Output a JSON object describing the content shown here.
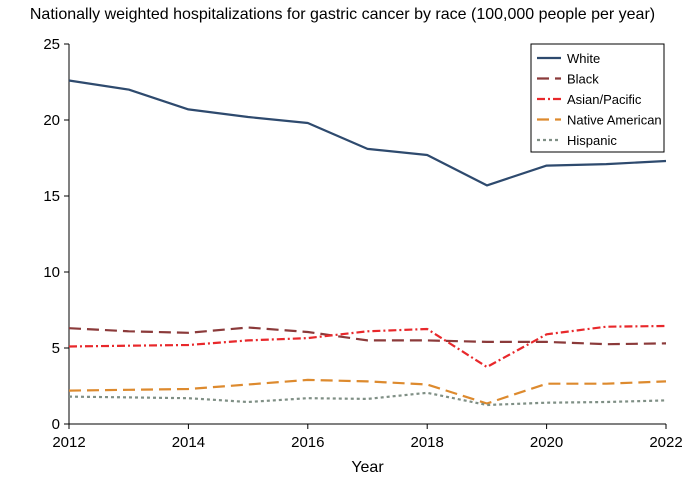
{
  "chart_data": {
    "type": "line",
    "title": "Nationally weighted hospitalizations for gastric cancer by race (100,000 people per year)",
    "xlabel": "Year",
    "ylabel": "",
    "xlim": [
      2012,
      2022
    ],
    "ylim": [
      0,
      25
    ],
    "x_ticks": [
      2012,
      2014,
      2016,
      2018,
      2020,
      2022
    ],
    "y_ticks": [
      0,
      5,
      10,
      15,
      20,
      25
    ],
    "grid": false,
    "legend_position": "top-right",
    "x": [
      2012,
      2013,
      2014,
      2015,
      2016,
      2017,
      2018,
      2019,
      2020,
      2021,
      2022
    ],
    "series": [
      {
        "name": "White",
        "color": "#2e4a6e",
        "dash": "solid",
        "values": [
          22.6,
          22.0,
          20.7,
          20.2,
          19.8,
          18.1,
          17.7,
          15.7,
          17.0,
          17.1,
          17.3
        ]
      },
      {
        "name": "Black",
        "color": "#8b3a3a",
        "dash": "longdash",
        "values": [
          6.3,
          6.1,
          6.0,
          6.35,
          6.05,
          5.5,
          5.5,
          5.4,
          5.4,
          5.25,
          5.3
        ]
      },
      {
        "name": "Asian/Pacific",
        "color": "#e8282b",
        "dash": "dashdot",
        "values": [
          5.1,
          5.15,
          5.2,
          5.5,
          5.65,
          6.1,
          6.25,
          3.75,
          5.9,
          6.4,
          6.45
        ]
      },
      {
        "name": "Native American",
        "color": "#dd8a2e",
        "dash": "longdash",
        "values": [
          2.2,
          2.25,
          2.3,
          2.6,
          2.9,
          2.8,
          2.6,
          1.35,
          2.65,
          2.65,
          2.8
        ]
      },
      {
        "name": "Hispanic",
        "color": "#7f8f85",
        "dash": "dotted",
        "values": [
          1.8,
          1.75,
          1.7,
          1.45,
          1.7,
          1.65,
          2.05,
          1.25,
          1.4,
          1.45,
          1.55
        ]
      }
    ]
  }
}
